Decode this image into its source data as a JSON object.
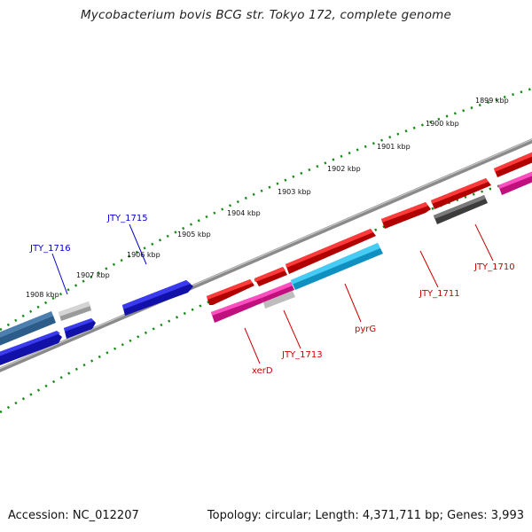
{
  "title": "Mycobacterium bovis BCG str. Tokyo 172, complete genome",
  "footer": {
    "accession": "Accession: NC_012207",
    "topology": "Topology: circular; Length: 4,371,711 bp; Genes: 3,993"
  },
  "colors": {
    "backbone": "#8a8a8a",
    "scale_ticks": "#1a8a1a",
    "forward_cds_red": "#ee1111",
    "forward_cds_dark": "#5a5a5a",
    "forward_cds_magenta": "#ee1aa0",
    "forward_cds_light_grey": "#bdbdbd",
    "forward_cds_cyan": "#22bbee",
    "reverse_cds_blue": "#1111dd",
    "reverse_cds_steelblue": "#4a7fb0",
    "reverse_label": "#0000cc",
    "forward_label": "#cc0000"
  },
  "scale_labels": [
    "1899 kbp",
    "1900 kbp",
    "1901 kbp",
    "1902 kbp",
    "1903 kbp",
    "1904 kbp",
    "1905 kbp",
    "1906 kbp",
    "1907 kbp",
    "1908 kbp"
  ],
  "gene_labels": {
    "reverse": [
      "JTY_1716",
      "JTY_1715"
    ],
    "forward": [
      "xerD",
      "JTY_1713",
      "pyrG",
      "JTY_1711",
      "JTY_1710"
    ]
  }
}
